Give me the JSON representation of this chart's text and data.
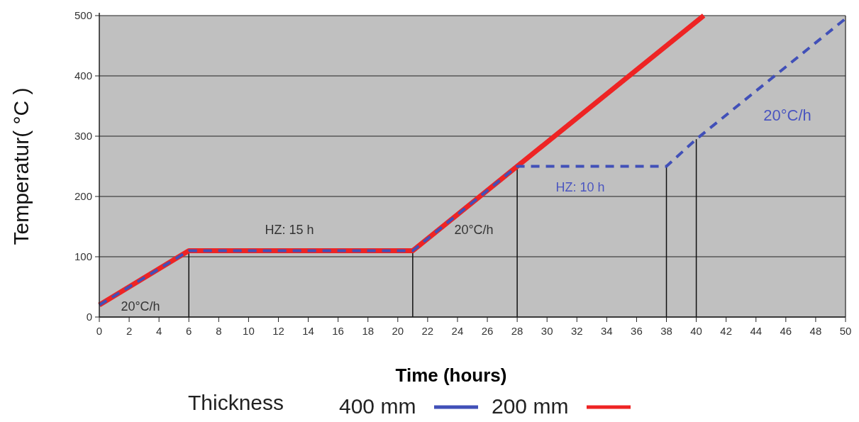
{
  "chart_data": {
    "type": "line",
    "xlabel": "Time (hours)",
    "ylabel": "Temperatur( °C )",
    "legend_title": "Thickness",
    "legend": "bottom",
    "grid": "y",
    "marker": "none",
    "xlim": [
      0,
      50
    ],
    "xticks": [
      0,
      2,
      4,
      6,
      8,
      10,
      12,
      14,
      16,
      18,
      20,
      22,
      24,
      26,
      28,
      30,
      32,
      34,
      36,
      38,
      40,
      42,
      44,
      46,
      48,
      50
    ],
    "ylim": [
      0,
      500
    ],
    "yticks": [
      0,
      100,
      200,
      300,
      400,
      500
    ],
    "series": [
      {
        "name": "400 mm",
        "color": "#4150b8",
        "line_style": "dashed",
        "x": [
          0,
          6,
          21,
          28,
          38,
          40,
          50
        ],
        "values": [
          20,
          110,
          110,
          250,
          250,
          295,
          495
        ]
      },
      {
        "name": "200 mm",
        "color": "#ee2424",
        "line_style": "solid",
        "x": [
          0,
          6,
          21,
          28,
          40.5
        ],
        "values": [
          20,
          110,
          110,
          250,
          500
        ]
      }
    ],
    "ref_lines": [
      {
        "axis": "x",
        "value": 6
      },
      {
        "axis": "x",
        "value": 21
      },
      {
        "axis": "x",
        "value": 28
      },
      {
        "axis": "x",
        "value": 38
      },
      {
        "axis": "x",
        "value": 40
      }
    ],
    "annotations": [
      "20°C/h",
      "HZ: 15 h",
      "20°C/h",
      "HZ: 10 h",
      "20°C/h"
    ]
  }
}
